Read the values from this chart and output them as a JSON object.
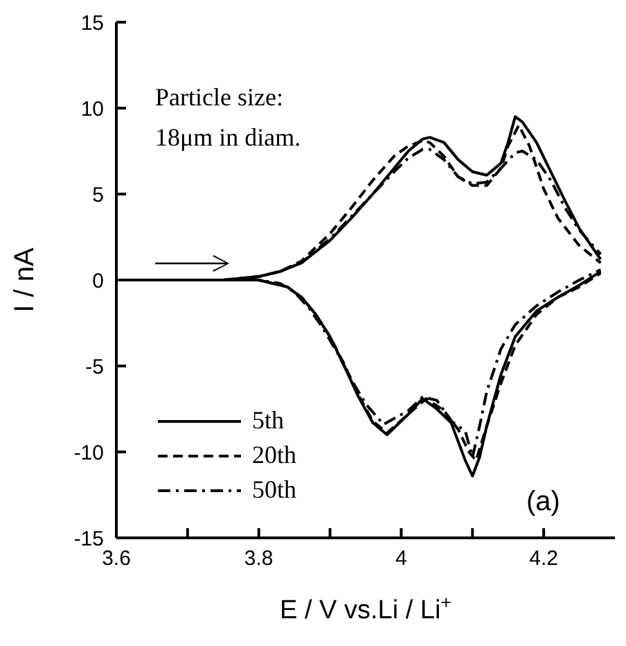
{
  "chart_data": {
    "type": "line",
    "xlabel": "E / V vs.Li / Li$^{+}$",
    "ylabel": "I / nA",
    "annotations": [
      "Particle size:",
      "18μm in diam.",
      "(a)"
    ],
    "xlim": [
      3.6,
      4.3
    ],
    "xticks": [
      3.6,
      {
        "value": 3.7,
        "label": null
      },
      3.8,
      {
        "value": 3.9,
        "label": null
      },
      4,
      {
        "value": 4.1,
        "label": null
      },
      4.2
    ],
    "ylim": [
      -15,
      15
    ],
    "yticks": [
      -15,
      -10,
      -5,
      0,
      5,
      10,
      15
    ],
    "grid": false,
    "legend": "bottom left",
    "marker": "none",
    "series": [
      {
        "name": "5th",
        "color": "#000000",
        "line_style": "solid",
        "x": [
          3.6,
          3.7,
          3.75,
          3.8,
          3.83,
          3.86,
          3.9,
          3.93,
          3.96,
          3.99,
          4.01,
          4.03,
          4.04,
          4.06,
          4.08,
          4.1,
          4.12,
          4.14,
          4.15,
          4.16,
          4.17,
          4.19,
          4.21,
          4.23,
          4.25,
          4.28
        ],
        "values": [
          0,
          0,
          0,
          0.2,
          0.5,
          1.0,
          2.3,
          3.6,
          5.0,
          6.5,
          7.5,
          8.2,
          8.3,
          8.0,
          7.0,
          6.3,
          6.1,
          6.8,
          8.0,
          9.5,
          9.2,
          8.0,
          6.3,
          4.6,
          3.0,
          1.2
        ]
      },
      {
        "color": "#000000",
        "line_style": "solid",
        "x": [
          3.6,
          3.7,
          3.8,
          3.82,
          3.84,
          3.86,
          3.88,
          3.9,
          3.92,
          3.94,
          3.96,
          3.98,
          4.01,
          4.03,
          4.05,
          4.07,
          4.09,
          4.1,
          4.11,
          4.12,
          4.14,
          4.16,
          4.19,
          4.22,
          4.25,
          4.28
        ],
        "values": [
          0,
          0,
          0,
          -0.2,
          -0.4,
          -1.0,
          -2.0,
          -3.3,
          -5.0,
          -6.8,
          -8.3,
          -9.0,
          -7.8,
          -6.9,
          -7.5,
          -8.3,
          -10.5,
          -11.4,
          -10.3,
          -8.5,
          -5.5,
          -3.3,
          -1.8,
          -1.0,
          -0.3,
          0.5
        ]
      },
      {
        "name": "20th",
        "color": "#000000",
        "line_style": "dashed",
        "x": [
          3.6,
          3.75,
          3.8,
          3.83,
          3.86,
          3.9,
          3.93,
          3.96,
          3.99,
          4.01,
          4.03,
          4.04,
          4.06,
          4.08,
          4.1,
          4.12,
          4.14,
          4.15,
          4.165,
          4.18,
          4.2,
          4.22,
          4.25,
          4.28
        ],
        "values": [
          0,
          0,
          0.2,
          0.5,
          1.1,
          2.7,
          4.2,
          5.8,
          7.2,
          7.8,
          8.1,
          8.0,
          7.2,
          6.0,
          5.5,
          5.5,
          6.5,
          7.8,
          9.0,
          7.8,
          5.3,
          3.6,
          2.0,
          1.0
        ]
      },
      {
        "color": "#000000",
        "line_style": "dashed",
        "x": [
          3.6,
          3.8,
          3.84,
          3.86,
          3.88,
          3.9,
          3.92,
          3.94,
          3.96,
          3.98,
          4.01,
          4.035,
          4.06,
          4.08,
          4.095,
          4.105,
          4.12,
          4.14,
          4.16,
          4.19,
          4.22,
          4.25,
          4.28
        ],
        "values": [
          0,
          0,
          -0.4,
          -1.0,
          -2.0,
          -3.3,
          -4.9,
          -6.7,
          -8.2,
          -8.9,
          -7.8,
          -6.9,
          -7.6,
          -8.7,
          -10.0,
          -10.5,
          -8.5,
          -6.0,
          -3.8,
          -2.0,
          -1.0,
          -0.4,
          0.4
        ]
      },
      {
        "name": "50th",
        "color": "#000000",
        "line_style": "dashdot",
        "x": [
          3.6,
          3.75,
          3.8,
          3.83,
          3.86,
          3.9,
          3.93,
          3.96,
          3.99,
          4.01,
          4.03,
          4.04,
          4.06,
          4.08,
          4.1,
          4.12,
          4.14,
          4.16,
          4.17,
          4.19,
          4.21,
          4.23,
          4.25,
          4.28
        ],
        "values": [
          0,
          0,
          0.2,
          0.5,
          1.0,
          2.4,
          3.7,
          5.0,
          6.3,
          7.1,
          7.6,
          7.6,
          7.0,
          6.0,
          5.6,
          5.7,
          6.5,
          7.4,
          7.5,
          7.0,
          5.8,
          4.2,
          2.9,
          1.5
        ]
      },
      {
        "color": "#000000",
        "line_style": "dashdot",
        "x": [
          3.6,
          3.8,
          3.83,
          3.85,
          3.87,
          3.89,
          3.91,
          3.93,
          3.95,
          3.975,
          4.01,
          4.03,
          4.05,
          4.07,
          4.09,
          4.1,
          4.11,
          4.12,
          4.14,
          4.16,
          4.19,
          4.22,
          4.25,
          4.28
        ],
        "values": [
          0,
          0,
          -0.2,
          -0.7,
          -1.6,
          -2.8,
          -4.2,
          -5.8,
          -7.2,
          -8.4,
          -7.6,
          -6.8,
          -7.0,
          -8.2,
          -8.8,
          -10.3,
          -8.5,
          -6.5,
          -4.0,
          -2.6,
          -1.5,
          -0.7,
          0,
          0.6
        ]
      }
    ]
  }
}
